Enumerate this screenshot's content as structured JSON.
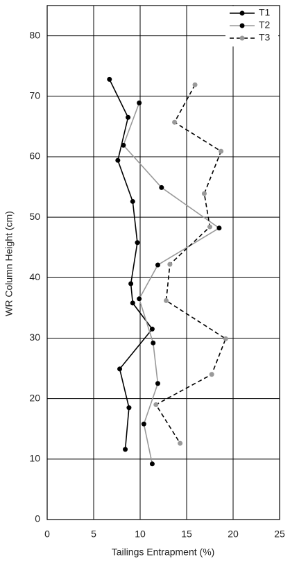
{
  "chart_data": {
    "type": "line",
    "x_label": "Tailings Entrapment (%)",
    "y_label": "WR Column Height (cm)",
    "xlim": [
      0,
      25
    ],
    "xticks": [
      0,
      5,
      10,
      15,
      20,
      25
    ],
    "ylim": [
      0,
      85
    ],
    "yticks": [
      0,
      10,
      20,
      30,
      40,
      50,
      60,
      70,
      80
    ],
    "grid": true,
    "legend": "top-right",
    "series": [
      {
        "name": "T1",
        "color": "#000000",
        "marker_color": "#000000",
        "dash": false,
        "x": [
          6.7,
          8.7,
          7.6,
          9.2,
          9.7,
          9.0,
          9.2,
          11.3,
          7.8,
          8.8,
          8.4
        ],
        "values": [
          72.8,
          66.5,
          59.4,
          52.6,
          45.8,
          39.0,
          35.8,
          31.5,
          24.9,
          18.5,
          11.6
        ]
      },
      {
        "name": "T2",
        "color": "#999999",
        "marker_color": "#000000",
        "dash": false,
        "x": [
          9.9,
          8.2,
          12.3,
          18.5,
          11.9,
          9.9,
          11.4,
          11.9,
          10.4,
          11.3
        ],
        "values": [
          68.9,
          61.9,
          54.9,
          48.2,
          42.1,
          36.5,
          29.2,
          22.5,
          15.8,
          9.2
        ]
      },
      {
        "name": "T3",
        "color": "#000000",
        "marker_color": "#999999",
        "dash": true,
        "x": [
          15.9,
          13.7,
          18.7,
          16.9,
          17.5,
          13.2,
          12.8,
          19.2,
          17.7,
          11.7,
          14.3
        ],
        "values": [
          71.9,
          65.7,
          60.9,
          53.9,
          48.4,
          42.2,
          36.2,
          29.9,
          24.0,
          19.0,
          12.6
        ]
      }
    ]
  }
}
